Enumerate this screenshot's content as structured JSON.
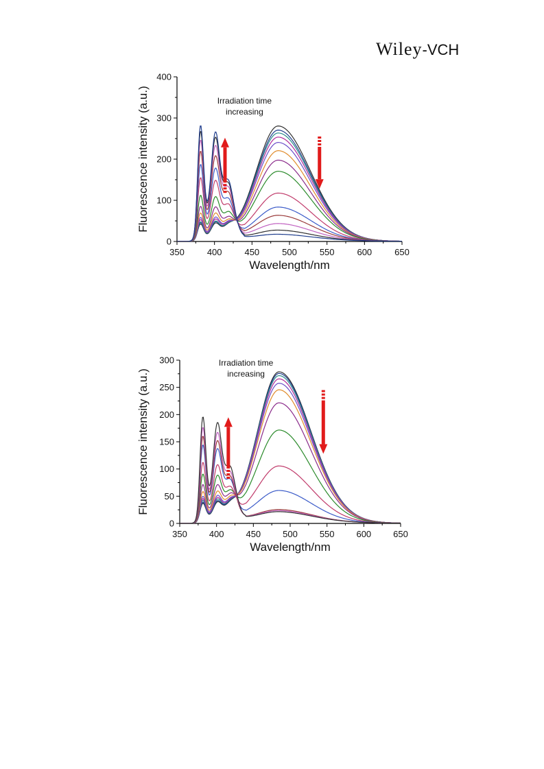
{
  "header": {
    "logo_text": "WILEY-VCH",
    "logo_main": "Wiley",
    "logo_suffix": "-VCH"
  },
  "colors": {
    "arrow": "#e11b1b",
    "axis": "#000000",
    "palette": [
      "#303030",
      "#1e3c8c",
      "#2a8c8c",
      "#b02a9a",
      "#6a4cc8",
      "#e08a2a",
      "#8a2a8a",
      "#2a8a2a",
      "#c03a6a",
      "#3a5ac8",
      "#9a3a3a",
      "#c060c0"
    ]
  },
  "chart_data": [
    {
      "type": "line",
      "title": "",
      "xlabel": "Wavelength/nm",
      "ylabel": "Fluorescence intensity (a.u.)",
      "xlim": [
        350,
        650
      ],
      "ylim": [
        0,
        400
      ],
      "xticks": [
        350,
        400,
        450,
        500,
        550,
        600,
        650
      ],
      "yticks": [
        0,
        100,
        200,
        300,
        400
      ],
      "grid": false,
      "legend": "none",
      "annotation": {
        "line1": "Irradiation time",
        "line2": "increasing",
        "x_data": 440,
        "y_data": 335
      },
      "arrows": [
        {
          "direction": "up",
          "x_data": 414,
          "y_from": 118,
          "y_to": 252
        },
        {
          "direction": "down",
          "x_data": 540,
          "y_from": 255,
          "y_to": 128
        }
      ],
      "series": [
        {
          "a": 35,
          "b": 20,
          "e": 275
        },
        {
          "a": 38,
          "b": 22,
          "e": 265
        },
        {
          "a": 40,
          "b": 24,
          "e": 258
        },
        {
          "a": 45,
          "b": 27,
          "e": 248
        },
        {
          "a": 50,
          "b": 30,
          "e": 235
        },
        {
          "a": 60,
          "b": 35,
          "e": 215
        },
        {
          "a": 75,
          "b": 45,
          "e": 192
        },
        {
          "a": 100,
          "b": 62,
          "e": 165
        },
        {
          "a": 140,
          "b": 85,
          "e": 112
        },
        {
          "a": 170,
          "b": 105,
          "e": 78
        },
        {
          "a": 200,
          "b": 125,
          "e": 58
        },
        {
          "a": 225,
          "b": 138,
          "e": 38
        },
        {
          "a": 245,
          "b": 150,
          "e": 22
        },
        {
          "a": 258,
          "b": 160,
          "e": 12
        }
      ]
    },
    {
      "type": "line",
      "title": "",
      "xlabel": "Wavelength/nm",
      "ylabel": "Fluorescence intensity (a.u.)",
      "xlim": [
        350,
        650
      ],
      "ylim": [
        0,
        300
      ],
      "xticks": [
        350,
        400,
        450,
        500,
        550,
        600,
        650
      ],
      "yticks": [
        0,
        50,
        100,
        150,
        200,
        250,
        300
      ],
      "grid": false,
      "legend": "none",
      "annotation": {
        "line1": "Irradiation time",
        "line2": "increasing",
        "x_data": 440,
        "y_data": 290
      },
      "arrows": [
        {
          "direction": "up",
          "x_data": 416,
          "y_from": 82,
          "y_to": 195
        },
        {
          "direction": "down",
          "x_data": 545,
          "y_from": 245,
          "y_to": 128
        }
      ],
      "series": [
        {
          "a": 30,
          "b": 18,
          "e": 273
        },
        {
          "a": 32,
          "b": 20,
          "e": 270
        },
        {
          "a": 35,
          "b": 22,
          "e": 266
        },
        {
          "a": 38,
          "b": 25,
          "e": 260
        },
        {
          "a": 42,
          "b": 28,
          "e": 252
        },
        {
          "a": 50,
          "b": 32,
          "e": 240
        },
        {
          "a": 62,
          "b": 40,
          "e": 216
        },
        {
          "a": 80,
          "b": 50,
          "e": 166
        },
        {
          "a": 100,
          "b": 60,
          "e": 100
        },
        {
          "a": 130,
          "b": 80,
          "e": 55
        },
        {
          "a": 145,
          "b": 90,
          "e": 20
        },
        {
          "a": 160,
          "b": 98,
          "e": 18
        },
        {
          "a": 178,
          "b": 108,
          "e": 16
        }
      ]
    }
  ]
}
